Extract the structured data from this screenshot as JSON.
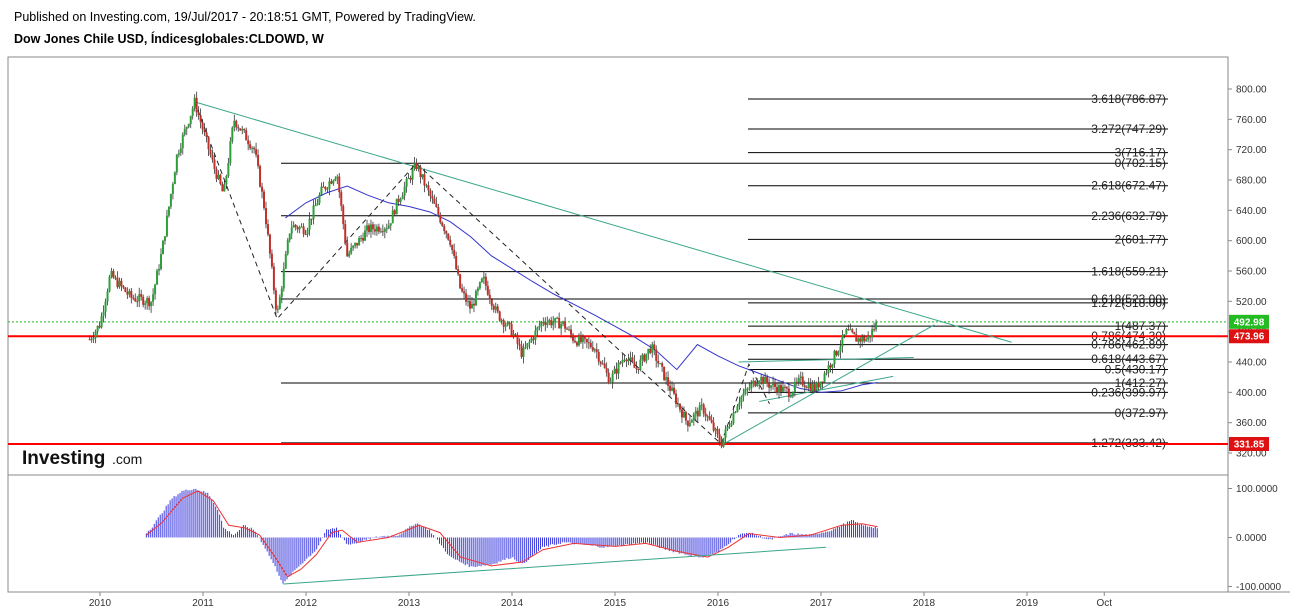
{
  "header": {
    "published": "Published on Investing.com, 19/Jul/2017 - 20:18:51 GMT, Powered by TradingView.",
    "symbol": "Dow Jones Chile USD, Índicesglobales:CLDOWD, W"
  },
  "logo": {
    "brand": "Investing",
    "suffix": ".com"
  },
  "colors": {
    "up": "#2e9e3a",
    "down": "#c0302a",
    "ma": "#3333cc",
    "trend": "#3aa58a",
    "support": "#ff0000",
    "current": "#22bb22",
    "macd_hist": "#3a3adc",
    "macd_signal": "#ee3333"
  },
  "chart_data": [
    {
      "type": "candlestick",
      "timeframe": "weekly",
      "x_axis": {
        "labels": [
          "2010",
          "2011",
          "2012",
          "2013",
          "2014",
          "2015",
          "2016",
          "2017",
          "2018",
          "2019",
          "Oct"
        ]
      },
      "y_axis": {
        "range": [
          320,
          810
        ],
        "tick_labels": [
          "800.00",
          "760.00",
          "720.00",
          "680.00",
          "640.00",
          "600.00",
          "560.00",
          "520.00",
          "480.00",
          "440.00",
          "400.00",
          "360.00",
          "320.00"
        ]
      },
      "price_path": [
        [
          2009.9,
          470
        ],
        [
          2010.0,
          490
        ],
        [
          2010.1,
          555
        ],
        [
          2010.3,
          525
        ],
        [
          2010.5,
          520
        ],
        [
          2010.6,
          585
        ],
        [
          2010.75,
          715
        ],
        [
          2010.92,
          783
        ],
        [
          2011.1,
          700
        ],
        [
          2011.2,
          660
        ],
        [
          2011.3,
          760
        ],
        [
          2011.5,
          720
        ],
        [
          2011.6,
          640
        ],
        [
          2011.72,
          500
        ],
        [
          2011.85,
          620
        ],
        [
          2012.0,
          615
        ],
        [
          2012.15,
          665
        ],
        [
          2012.3,
          690
        ],
        [
          2012.4,
          580
        ],
        [
          2012.6,
          615
        ],
        [
          2012.8,
          620
        ],
        [
          2012.9,
          655
        ],
        [
          2013.07,
          700
        ],
        [
          2013.2,
          660
        ],
        [
          2013.4,
          600
        ],
        [
          2013.5,
          535
        ],
        [
          2013.6,
          510
        ],
        [
          2013.72,
          550
        ],
        [
          2013.85,
          505
        ],
        [
          2014.0,
          480
        ],
        [
          2014.1,
          450
        ],
        [
          2014.3,
          495
        ],
        [
          2014.5,
          490
        ],
        [
          2014.6,
          470
        ],
        [
          2014.8,
          460
        ],
        [
          2014.95,
          415
        ],
        [
          2015.1,
          450
        ],
        [
          2015.2,
          430
        ],
        [
          2015.35,
          460
        ],
        [
          2015.5,
          415
        ],
        [
          2015.7,
          360
        ],
        [
          2015.85,
          380
        ],
        [
          2016.03,
          332
        ],
        [
          2016.2,
          390
        ],
        [
          2016.4,
          420
        ],
        [
          2016.5,
          410
        ],
        [
          2016.7,
          400
        ],
        [
          2016.8,
          415
        ],
        [
          2016.95,
          405
        ],
        [
          2017.1,
          440
        ],
        [
          2017.25,
          480
        ],
        [
          2017.35,
          470
        ],
        [
          2017.45,
          470
        ],
        [
          2017.55,
          493
        ]
      ],
      "moving_average": [
        [
          2011.8,
          630
        ],
        [
          2012.0,
          650
        ],
        [
          2012.2,
          663
        ],
        [
          2012.4,
          672
        ],
        [
          2012.6,
          660
        ],
        [
          2012.8,
          650
        ],
        [
          2013.0,
          645
        ],
        [
          2013.2,
          638
        ],
        [
          2013.4,
          625
        ],
        [
          2013.6,
          605
        ],
        [
          2013.8,
          580
        ],
        [
          2014.0,
          563
        ],
        [
          2014.2,
          546
        ],
        [
          2014.4,
          530
        ],
        [
          2014.6,
          516
        ],
        [
          2014.8,
          502
        ],
        [
          2015.0,
          487
        ],
        [
          2015.2,
          472
        ],
        [
          2015.4,
          455
        ],
        [
          2015.6,
          430
        ],
        [
          2015.8,
          463
        ],
        [
          2016.0,
          448
        ],
        [
          2016.2,
          435
        ],
        [
          2016.4,
          425
        ],
        [
          2016.6,
          415
        ],
        [
          2016.8,
          405
        ],
        [
          2017.0,
          400
        ],
        [
          2017.2,
          402
        ],
        [
          2017.4,
          410
        ],
        [
          2017.55,
          413
        ]
      ],
      "fib_levels": [
        {
          "label": "3.618(786.87)",
          "value": 786.87
        },
        {
          "label": "3.272(747.29)",
          "value": 747.29
        },
        {
          "label": "3(716.17)",
          "value": 716.17
        },
        {
          "label": "0(702.15)",
          "value": 702.15
        },
        {
          "label": "2.618(672.47)",
          "value": 672.47
        },
        {
          "label": "2.236(632.79)",
          "value": 632.79
        },
        {
          "label": "2(601.77)",
          "value": 601.77
        },
        {
          "label": "1.618(559.21)",
          "value": 559.21
        },
        {
          "label": "0.618(523.00)",
          "value": 523.0
        },
        {
          "label": "1.272(518.00)",
          "value": 518.0
        },
        {
          "label": "1(487.37)",
          "value": 487.37
        },
        {
          "label": "0.786(474.30)",
          "value": 474.3
        },
        {
          "label": "0.786(462.89)",
          "value": 462.89
        },
        {
          "label": "0.618(443.67)",
          "value": 443.67
        },
        {
          "label": "0.5(430.17)",
          "value": 430.17
        },
        {
          "label": "1(412.27)",
          "value": 412.27
        },
        {
          "label": "0.236(399.97)",
          "value": 399.97
        },
        {
          "label": "0(372.97)",
          "value": 372.97
        },
        {
          "label": "1.272(333.42)",
          "value": 333.42
        }
      ],
      "horizontal_lines": [
        {
          "value": 473.96,
          "color": "#ff0000"
        },
        {
          "value": 331.85,
          "color": "#ff0000"
        },
        {
          "value": 492.98,
          "color": "#22bb22",
          "dotted": true
        }
      ],
      "price_badges": [
        {
          "label": "492.98",
          "value": 492.98,
          "color": "#22bb22"
        },
        {
          "label": "473.96",
          "value": 473.96,
          "color": "#dd1111"
        },
        {
          "label": "331.85",
          "value": 331.85,
          "color": "#dd1111"
        }
      ],
      "trend_lines": [
        {
          "from": [
            2010.92,
            783
          ],
          "to": [
            2018.85,
            466
          ]
        },
        {
          "from": [
            2016.03,
            330
          ],
          "to": [
            2018.1,
            489
          ]
        },
        {
          "from": [
            2016.4,
            388
          ],
          "to": [
            2017.7,
            421
          ]
        },
        {
          "from": [
            2016.2,
            440
          ],
          "to": [
            2017.9,
            446
          ]
        }
      ],
      "zigzag": [
        [
          2010.92,
          783
        ],
        [
          2011.72,
          497
        ],
        [
          2013.07,
          702
        ],
        [
          2016.03,
          332
        ],
        [
          2016.3,
          437
        ],
        [
          2016.5,
          385
        ]
      ]
    },
    {
      "type": "macd",
      "y_axis": {
        "tick_labels": [
          "100.0000",
          "0.0000",
          "-100.0000"
        ]
      },
      "histogram": [
        [
          2010.45,
          10
        ],
        [
          2010.5,
          20
        ],
        [
          2010.6,
          50
        ],
        [
          2010.7,
          80
        ],
        [
          2010.8,
          95
        ],
        [
          2010.92,
          100
        ],
        [
          2011.05,
          90
        ],
        [
          2011.15,
          55
        ],
        [
          2011.2,
          20
        ],
        [
          2011.3,
          5
        ],
        [
          2011.4,
          25
        ],
        [
          2011.5,
          15
        ],
        [
          2011.6,
          -20
        ],
        [
          2011.7,
          -60
        ],
        [
          2011.78,
          -95
        ],
        [
          2011.9,
          -65
        ],
        [
          2012.0,
          -45
        ],
        [
          2012.1,
          -25
        ],
        [
          2012.2,
          15
        ],
        [
          2012.3,
          20
        ],
        [
          2012.4,
          -15
        ],
        [
          2012.5,
          -10
        ],
        [
          2012.7,
          2
        ],
        [
          2012.9,
          5
        ],
        [
          2013.07,
          30
        ],
        [
          2013.2,
          15
        ],
        [
          2013.4,
          -40
        ],
        [
          2013.6,
          -60
        ],
        [
          2013.8,
          -55
        ],
        [
          2014.0,
          -40
        ],
        [
          2014.1,
          -55
        ],
        [
          2014.3,
          -20
        ],
        [
          2014.5,
          -10
        ],
        [
          2014.7,
          -15
        ],
        [
          2014.9,
          -20
        ],
        [
          2015.1,
          -15
        ],
        [
          2015.3,
          -10
        ],
        [
          2015.5,
          -25
        ],
        [
          2015.7,
          -35
        ],
        [
          2015.85,
          -40
        ],
        [
          2016.0,
          -30
        ],
        [
          2016.2,
          5
        ],
        [
          2016.3,
          10
        ],
        [
          2016.5,
          -5
        ],
        [
          2016.7,
          8
        ],
        [
          2016.9,
          5
        ],
        [
          2017.1,
          15
        ],
        [
          2017.3,
          35
        ],
        [
          2017.4,
          25
        ],
        [
          2017.55,
          20
        ]
      ],
      "signal": [
        [
          2010.45,
          5
        ],
        [
          2010.6,
          30
        ],
        [
          2010.8,
          80
        ],
        [
          2010.95,
          95
        ],
        [
          2011.1,
          75
        ],
        [
          2011.25,
          25
        ],
        [
          2011.4,
          20
        ],
        [
          2011.55,
          5
        ],
        [
          2011.7,
          -40
        ],
        [
          2011.82,
          -80
        ],
        [
          2011.95,
          -65
        ],
        [
          2012.1,
          -35
        ],
        [
          2012.25,
          10
        ],
        [
          2012.35,
          15
        ],
        [
          2012.5,
          -10
        ],
        [
          2012.8,
          0
        ],
        [
          2013.1,
          25
        ],
        [
          2013.3,
          10
        ],
        [
          2013.5,
          -40
        ],
        [
          2013.8,
          -58
        ],
        [
          2014.1,
          -50
        ],
        [
          2014.3,
          -25
        ],
        [
          2014.6,
          -12
        ],
        [
          2015.0,
          -18
        ],
        [
          2015.3,
          -12
        ],
        [
          2015.6,
          -28
        ],
        [
          2015.9,
          -40
        ],
        [
          2016.1,
          -20
        ],
        [
          2016.3,
          8
        ],
        [
          2016.6,
          0
        ],
        [
          2016.9,
          5
        ],
        [
          2017.2,
          25
        ],
        [
          2017.4,
          28
        ],
        [
          2017.55,
          22
        ]
      ],
      "trend_lines": [
        {
          "from": [
            2011.78,
            -95
          ],
          "to": [
            2017.05,
            -20
          ]
        }
      ]
    }
  ]
}
